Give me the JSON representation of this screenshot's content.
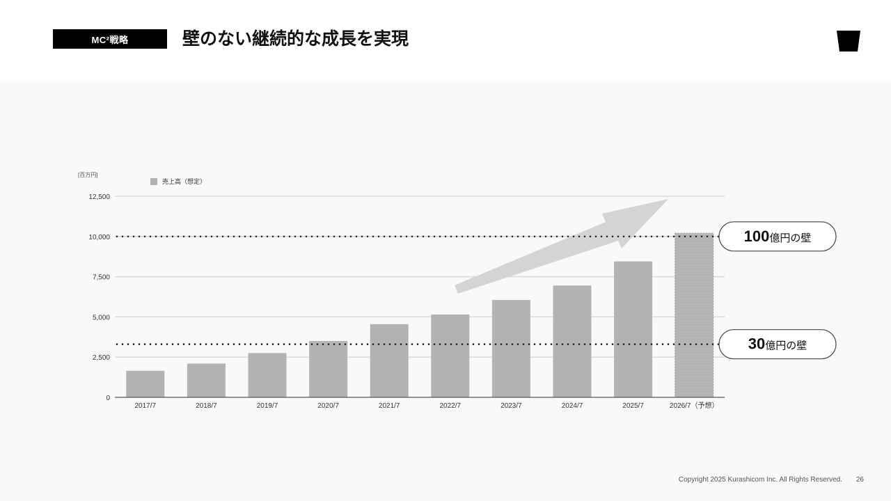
{
  "header": {
    "tag_label": "MC²戦略",
    "title": "壁のない継続的な成長を実現"
  },
  "icons": {
    "logo": "cup-logo-icon",
    "growth_arrow": "arrow-up-right-icon"
  },
  "colors": {
    "bar": "#b3b3b3",
    "grid": "#d9d9d9",
    "axis": "#555555",
    "dotted_line": "#222222",
    "arrow": "#d4d4d4",
    "tag_bg": "#000000",
    "panel_bg": "#f9f9f9"
  },
  "chart_data": {
    "type": "bar",
    "unit_label": "[百万円]",
    "categories": [
      "2017/7",
      "2018/7",
      "2019/7",
      "2020/7",
      "2021/7",
      "2022/7",
      "2023/7",
      "2024/7",
      "2025/7",
      "2026/7（予想）"
    ],
    "series": [
      {
        "name": "売上高（想定）",
        "values": [
          1650,
          2100,
          2750,
          3500,
          4550,
          5150,
          6050,
          6950,
          8450,
          10200
        ],
        "forecast_index": 9
      }
    ],
    "ylim": [
      0,
      12500
    ],
    "yticks": [
      "0",
      "2,500",
      "5,000",
      "7,500",
      "10,000",
      "12,500"
    ],
    "ytick_values": [
      0,
      2500,
      5000,
      7500,
      10000,
      12500
    ],
    "grid": true,
    "legend_position": "top-left",
    "reference_lines": [
      {
        "value": 10000,
        "big": "100",
        "small": "億円の壁"
      },
      {
        "value": 3300,
        "big": "30",
        "small": "億円の壁"
      }
    ]
  },
  "footer": {
    "copyright": "Copyright 2025 Kurashicom Inc. All Rights Reserved.",
    "page": "26"
  }
}
